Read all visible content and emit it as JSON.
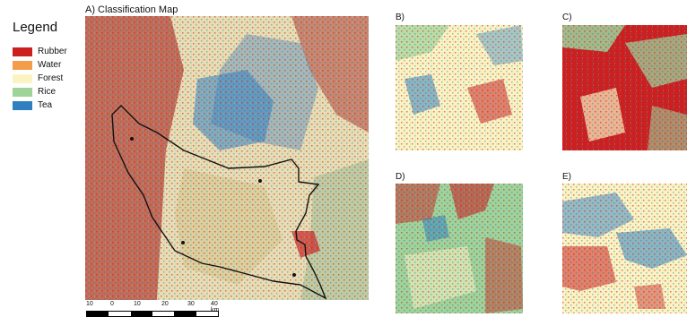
{
  "legend": {
    "title": "Legend",
    "items": [
      {
        "label": "Rubber",
        "color": "#cc1f1f"
      },
      {
        "label": "Water",
        "color": "#f39c4a"
      },
      {
        "label": "Forest",
        "color": "#fbf3c2"
      },
      {
        "label": "Rice",
        "color": "#9ed39a"
      },
      {
        "label": "Tea",
        "color": "#2f7fc1"
      }
    ]
  },
  "panels": {
    "A": {
      "label": "A) Classification Map"
    },
    "B": {
      "label": "B)"
    },
    "C": {
      "label": "C)"
    },
    "D": {
      "label": "D)"
    },
    "E": {
      "label": "E)"
    }
  },
  "scalebar": {
    "ticks": [
      "10",
      "0",
      "10",
      "20",
      "30",
      "40 km"
    ]
  }
}
